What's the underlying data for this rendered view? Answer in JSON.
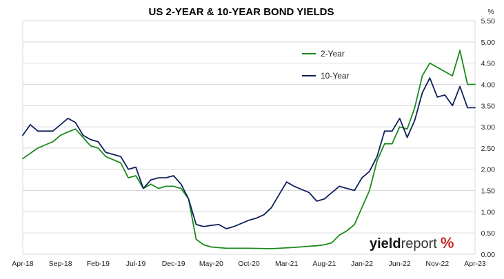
{
  "chart_data": {
    "type": "line",
    "title": "US 2-YEAR & 10-YEAR BOND YIELDS",
    "unit_label": "%",
    "ylim": [
      0,
      5.5
    ],
    "y_ticks": [
      "0.00",
      "0.50",
      "1.00",
      "1.50",
      "2.00",
      "2.50",
      "3.00",
      "3.50",
      "4.00",
      "4.50",
      "5.00",
      "5.50"
    ],
    "x_ticks": [
      "Apr-18",
      "Sep-18",
      "Feb-19",
      "Jul-19",
      "Dec-19",
      "May-20",
      "Oct-20",
      "Mar-21",
      "Aug-21",
      "Jan-22",
      "Jun-22",
      "Nov-22",
      "Apr-23"
    ],
    "x_unit": "month",
    "grid": "horizontal",
    "legend_position": "top-right",
    "series": [
      {
        "name": "2-Year",
        "color": "#1a8a1a",
        "points": [
          [
            "Apr-18",
            2.25
          ],
          [
            "Jun-18",
            2.5
          ],
          [
            "Aug-18",
            2.65
          ],
          [
            "Sep-18",
            2.8
          ],
          [
            "Oct-18",
            2.88
          ],
          [
            "Nov-18",
            2.95
          ],
          [
            "Dec-18",
            2.75
          ],
          [
            "Jan-19",
            2.55
          ],
          [
            "Feb-19",
            2.5
          ],
          [
            "Mar-19",
            2.3
          ],
          [
            "May-19",
            2.15
          ],
          [
            "Jun-19",
            1.8
          ],
          [
            "Jul-19",
            1.85
          ],
          [
            "Aug-19",
            1.55
          ],
          [
            "Sep-19",
            1.65
          ],
          [
            "Oct-19",
            1.55
          ],
          [
            "Nov-19",
            1.6
          ],
          [
            "Dec-19",
            1.6
          ],
          [
            "Jan-20",
            1.55
          ],
          [
            "Feb-20",
            1.3
          ],
          [
            "Mar-20",
            0.35
          ],
          [
            "Apr-20",
            0.22
          ],
          [
            "May-20",
            0.17
          ],
          [
            "Jul-20",
            0.14
          ],
          [
            "Oct-20",
            0.14
          ],
          [
            "Jan-21",
            0.13
          ],
          [
            "Apr-21",
            0.16
          ],
          [
            "Jul-21",
            0.2
          ],
          [
            "Aug-21",
            0.22
          ],
          [
            "Sep-21",
            0.27
          ],
          [
            "Oct-21",
            0.45
          ],
          [
            "Nov-21",
            0.55
          ],
          [
            "Dec-21",
            0.7
          ],
          [
            "Jan-22",
            1.1
          ],
          [
            "Feb-22",
            1.5
          ],
          [
            "Mar-22",
            2.2
          ],
          [
            "Apr-22",
            2.6
          ],
          [
            "May-22",
            2.6
          ],
          [
            "Jun-22",
            3.0
          ],
          [
            "Jul-22",
            2.95
          ],
          [
            "Aug-22",
            3.45
          ],
          [
            "Sep-22",
            4.2
          ],
          [
            "Oct-22",
            4.5
          ],
          [
            "Nov-22",
            4.4
          ],
          [
            "Dec-22",
            4.3
          ],
          [
            "Jan-23",
            4.2
          ],
          [
            "Feb-23",
            4.8
          ],
          [
            "Mar-23",
            4.0
          ],
          [
            "Apr-23",
            4.0
          ]
        ]
      },
      {
        "name": "10-Year",
        "color": "#0d1f5c",
        "points": [
          [
            "Apr-18",
            2.8
          ],
          [
            "May-18",
            3.05
          ],
          [
            "Jun-18",
            2.9
          ],
          [
            "Aug-18",
            2.9
          ],
          [
            "Sep-18",
            3.05
          ],
          [
            "Oct-18",
            3.2
          ],
          [
            "Nov-18",
            3.1
          ],
          [
            "Dec-18",
            2.8
          ],
          [
            "Jan-19",
            2.7
          ],
          [
            "Feb-19",
            2.65
          ],
          [
            "Mar-19",
            2.4
          ],
          [
            "May-19",
            2.3
          ],
          [
            "Jun-19",
            2.0
          ],
          [
            "Jul-19",
            2.05
          ],
          [
            "Aug-19",
            1.55
          ],
          [
            "Sep-19",
            1.75
          ],
          [
            "Oct-19",
            1.8
          ],
          [
            "Nov-19",
            1.8
          ],
          [
            "Dec-19",
            1.85
          ],
          [
            "Jan-20",
            1.65
          ],
          [
            "Feb-20",
            1.3
          ],
          [
            "Mar-20",
            0.7
          ],
          [
            "Apr-20",
            0.65
          ],
          [
            "May-20",
            0.68
          ],
          [
            "Jun-20",
            0.7
          ],
          [
            "Jul-20",
            0.6
          ],
          [
            "Aug-20",
            0.65
          ],
          [
            "Oct-20",
            0.8
          ],
          [
            "Nov-20",
            0.85
          ],
          [
            "Dec-20",
            0.93
          ],
          [
            "Jan-21",
            1.1
          ],
          [
            "Feb-21",
            1.4
          ],
          [
            "Mar-21",
            1.7
          ],
          [
            "Apr-21",
            1.6
          ],
          [
            "Jun-21",
            1.45
          ],
          [
            "Jul-21",
            1.25
          ],
          [
            "Aug-21",
            1.3
          ],
          [
            "Sep-21",
            1.45
          ],
          [
            "Oct-21",
            1.6
          ],
          [
            "Nov-21",
            1.55
          ],
          [
            "Dec-21",
            1.5
          ],
          [
            "Jan-22",
            1.8
          ],
          [
            "Feb-22",
            1.95
          ],
          [
            "Mar-22",
            2.3
          ],
          [
            "Apr-22",
            2.9
          ],
          [
            "May-22",
            2.9
          ],
          [
            "Jun-22",
            3.2
          ],
          [
            "Jul-22",
            2.75
          ],
          [
            "Aug-22",
            3.15
          ],
          [
            "Sep-22",
            3.8
          ],
          [
            "Oct-22",
            4.15
          ],
          [
            "Nov-22",
            3.7
          ],
          [
            "Dec-22",
            3.75
          ],
          [
            "Jan-23",
            3.5
          ],
          [
            "Feb-23",
            3.95
          ],
          [
            "Mar-23",
            3.45
          ],
          [
            "Apr-23",
            3.45
          ]
        ]
      }
    ]
  },
  "watermark": {
    "part1": "yield",
    "part2": "report",
    "part3": "%"
  }
}
